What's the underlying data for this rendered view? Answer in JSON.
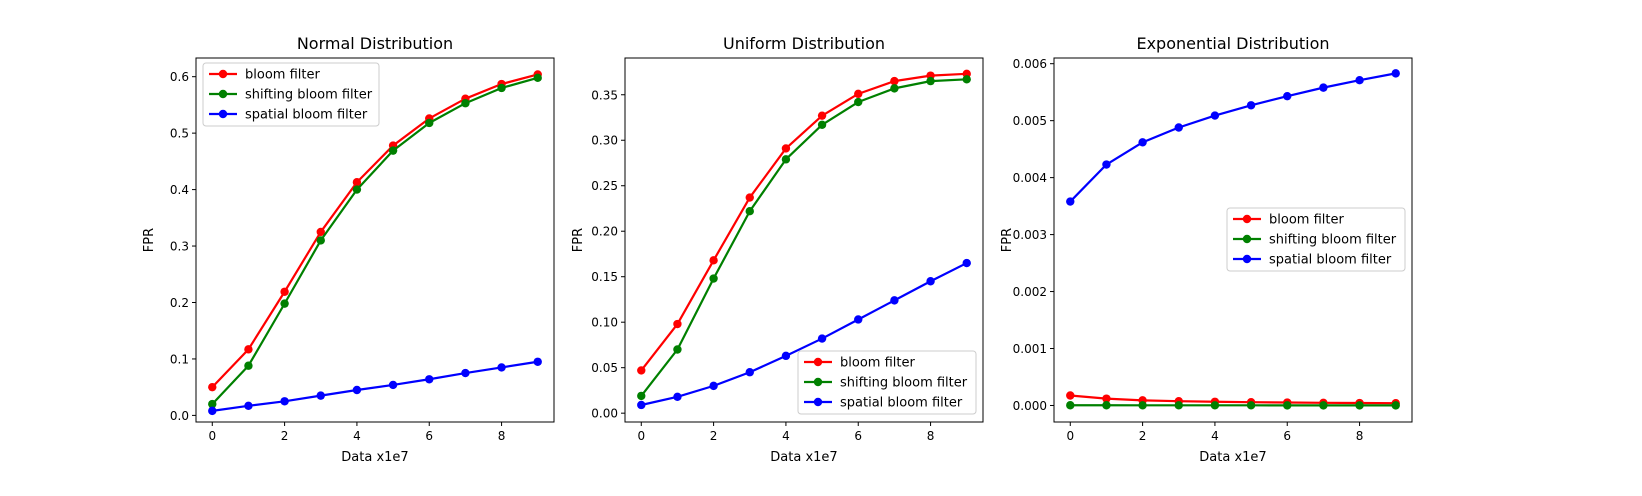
{
  "chart_data": [
    {
      "type": "line",
      "title": "Normal Distribution",
      "xlabel": "Data x1e7",
      "ylabel": "FPR",
      "x": [
        0,
        1,
        2,
        3,
        4,
        5,
        6,
        7,
        8,
        9
      ],
      "xticks": [
        0,
        2,
        4,
        6,
        8
      ],
      "xtick_labels": [
        "0",
        "2",
        "4",
        "6",
        "8"
      ],
      "xlim": [
        -0.45,
        9.45
      ],
      "yticks": [
        0.0,
        0.1,
        0.2,
        0.3,
        0.4,
        0.5,
        0.6
      ],
      "ytick_labels": [
        "0.0",
        "0.1",
        "0.2",
        "0.3",
        "0.4",
        "0.5",
        "0.6"
      ],
      "ylim": [
        -0.0117,
        0.6331
      ],
      "legend": "upper-left",
      "series": [
        {
          "name": "bloom filter",
          "color": "#ff0000",
          "values": [
            0.05,
            0.117,
            0.219,
            0.325,
            0.413,
            0.478,
            0.526,
            0.561,
            0.587,
            0.604
          ]
        },
        {
          "name": "shifting bloom filter",
          "color": "#008000",
          "values": [
            0.02,
            0.088,
            0.198,
            0.31,
            0.4,
            0.469,
            0.518,
            0.553,
            0.58,
            0.598
          ]
        },
        {
          "name": "spatial bloom filter",
          "color": "#0000ff",
          "values": [
            0.008,
            0.017,
            0.025,
            0.035,
            0.045,
            0.054,
            0.064,
            0.075,
            0.085,
            0.095
          ]
        }
      ]
    },
    {
      "type": "line",
      "title": "Uniform Distribution",
      "xlabel": "Data x1e7",
      "ylabel": "FPR",
      "x": [
        0,
        1,
        2,
        3,
        4,
        5,
        6,
        7,
        8,
        9
      ],
      "xticks": [
        0,
        2,
        4,
        6,
        8
      ],
      "xtick_labels": [
        "0",
        "2",
        "4",
        "6",
        "8"
      ],
      "xlim": [
        -0.45,
        9.45
      ],
      "yticks": [
        0.0,
        0.05,
        0.1,
        0.15,
        0.2,
        0.25,
        0.3,
        0.35
      ],
      "ytick_labels": [
        "0.00",
        "0.05",
        "0.10",
        "0.15",
        "0.20",
        "0.25",
        "0.30",
        "0.35"
      ],
      "ylim": [
        -0.0097,
        0.3904
      ],
      "legend": "lower-right",
      "series": [
        {
          "name": "bloom filter",
          "color": "#ff0000",
          "values": [
            0.047,
            0.098,
            0.168,
            0.237,
            0.291,
            0.327,
            0.351,
            0.365,
            0.371,
            0.373
          ]
        },
        {
          "name": "shifting bloom filter",
          "color": "#008000",
          "values": [
            0.019,
            0.07,
            0.148,
            0.222,
            0.279,
            0.317,
            0.342,
            0.357,
            0.365,
            0.367
          ]
        },
        {
          "name": "spatial bloom filter",
          "color": "#0000ff",
          "values": [
            0.009,
            0.018,
            0.03,
            0.045,
            0.063,
            0.082,
            0.103,
            0.124,
            0.145,
            0.165
          ]
        }
      ]
    },
    {
      "type": "line",
      "title": "Exponential Distribution",
      "xlabel": "Data x1e7",
      "ylabel": "FPR",
      "x": [
        0,
        1,
        2,
        3,
        4,
        5,
        6,
        7,
        8,
        9
      ],
      "xticks": [
        0,
        2,
        4,
        6,
        8
      ],
      "xtick_labels": [
        "0",
        "2",
        "4",
        "6",
        "8"
      ],
      "xlim": [
        -0.45,
        9.45
      ],
      "yticks": [
        0.0,
        0.001,
        0.002,
        0.003,
        0.004,
        0.005,
        0.006
      ],
      "ytick_labels": [
        "0.000",
        "0.001",
        "0.002",
        "0.003",
        "0.004",
        "0.005",
        "0.006"
      ],
      "ylim": [
        -0.00029,
        0.0061
      ],
      "legend": "center-right",
      "series": [
        {
          "name": "bloom filter",
          "color": "#ff0000",
          "values": [
            0.000175,
            0.00012,
            9e-05,
            7.5e-05,
            6.5e-05,
            5.8e-05,
            5.2e-05,
            4.7e-05,
            4.3e-05,
            4e-05
          ]
        },
        {
          "name": "shifting bloom filter",
          "color": "#008000",
          "values": [
            4e-06,
            4e-06,
            3e-06,
            3e-06,
            3e-06,
            3e-06,
            2e-06,
            2e-06,
            2e-06,
            2e-06
          ]
        },
        {
          "name": "spatial bloom filter",
          "color": "#0000ff",
          "values": [
            0.00358,
            0.00423,
            0.00462,
            0.00488,
            0.00509,
            0.00527,
            0.00543,
            0.00558,
            0.00571,
            0.00583
          ]
        }
      ]
    }
  ]
}
